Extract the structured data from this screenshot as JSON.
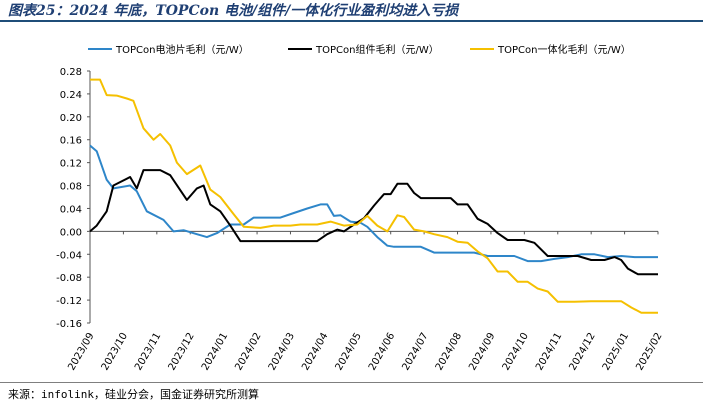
{
  "header": {
    "title": "图表25：2024 年底，TOPCon 电池/组件/一体化行业盈利均进入亏损"
  },
  "footer": {
    "source": "来源：infolink，硅业分会，国金证券研究所测算"
  },
  "chart_data": {
    "type": "line",
    "title": "",
    "xlabel": "",
    "ylabel": "",
    "ylim": [
      -0.16,
      0.28
    ],
    "yticks": [
      "0.28",
      "0.24",
      "0.20",
      "0.16",
      "0.12",
      "0.08",
      "0.04",
      "0.00",
      "-0.04",
      "-0.08",
      "-0.12",
      "-0.16"
    ],
    "xlim": [
      "2023/09",
      "2025/02"
    ],
    "xticks": [
      "2023/09",
      "2023/10",
      "2023/11",
      "2023/12",
      "2024/01",
      "2024/02",
      "2024/03",
      "2024/04",
      "2024/05",
      "2024/06",
      "2024/07",
      "2024/08",
      "2024/09",
      "2024/10",
      "2024/11",
      "2024/12",
      "2025/01",
      "2025/02"
    ],
    "grid": false,
    "legend_position": "top",
    "series": [
      {
        "name": "TOPCon电池片毛利（元/W）",
        "color": "#2e86c9",
        "points": [
          [
            "2023/09",
            0.15
          ],
          [
            "2023/09.2",
            0.14
          ],
          [
            "2023/09.5",
            0.09
          ],
          [
            "2023/09.7",
            0.075
          ],
          [
            "2023/10.2",
            0.08
          ],
          [
            "2023/10.4",
            0.07
          ],
          [
            "2023/10.7",
            0.035
          ],
          [
            "2023/11.2",
            0.02
          ],
          [
            "2023/11.5",
            0.0
          ],
          [
            "2023/11.8",
            0.002
          ],
          [
            "2023/12.2",
            -0.005
          ],
          [
            "2023/12.5",
            -0.01
          ],
          [
            "2023/12.8",
            -0.003
          ],
          [
            "2024/01.2",
            0.012
          ],
          [
            "2024/01.6",
            0.012
          ],
          [
            "2024/01.9",
            0.024
          ],
          [
            "2024/02.3",
            0.024
          ],
          [
            "2024/02.7",
            0.024
          ],
          [
            "2024/03.1",
            0.032
          ],
          [
            "2024/03.5",
            0.04
          ],
          [
            "2024/03.9",
            0.047
          ],
          [
            "2024/04.1",
            0.047
          ],
          [
            "2024/04.3",
            0.027
          ],
          [
            "2024/04.5",
            0.028
          ],
          [
            "2024/04.8",
            0.017
          ],
          [
            "2024/05.1",
            0.015
          ],
          [
            "2024/05.3",
            0.008
          ],
          [
            "2024/05.6",
            -0.01
          ],
          [
            "2024/05.9",
            -0.025
          ],
          [
            "2024/06.1",
            -0.027
          ],
          [
            "2024/06.5",
            -0.027
          ],
          [
            "2024/06.9",
            -0.027
          ],
          [
            "2024/07.3",
            -0.037
          ],
          [
            "2024/07.7",
            -0.037
          ],
          [
            "2024/08.1",
            -0.037
          ],
          [
            "2024/08.5",
            -0.037
          ],
          [
            "2024/08.9",
            -0.043
          ],
          [
            "2024/09.3",
            -0.043
          ],
          [
            "2024/09.7",
            -0.043
          ],
          [
            "2024/10.1",
            -0.052
          ],
          [
            "2024/10.5",
            -0.052
          ],
          [
            "2024/10.9",
            -0.048
          ],
          [
            "2024/11.3",
            -0.045
          ],
          [
            "2024/11.7",
            -0.04
          ],
          [
            "2024/12.1",
            -0.04
          ],
          [
            "2024/12.5",
            -0.045
          ],
          [
            "2024/12.9",
            -0.043
          ],
          [
            "2025/01.3",
            -0.045
          ],
          [
            "2025/01.7",
            -0.045
          ],
          [
            "2025/02",
            -0.045
          ]
        ]
      },
      {
        "name": "TOPCon组件毛利（元/W）",
        "color": "#000000",
        "points": [
          [
            "2023/09",
            0.0
          ],
          [
            "2023/09.2",
            0.01
          ],
          [
            "2023/09.5",
            0.035
          ],
          [
            "2023/09.7",
            0.08
          ],
          [
            "2023/10.2",
            0.095
          ],
          [
            "2023/10.4",
            0.075
          ],
          [
            "2023/10.6",
            0.107
          ],
          [
            "2023/11.1",
            0.107
          ],
          [
            "2023/11.4",
            0.098
          ],
          [
            "2023/11.7",
            0.072
          ],
          [
            "2023/11.9",
            0.055
          ],
          [
            "2023/12.2",
            0.075
          ],
          [
            "2023/12.4",
            0.08
          ],
          [
            "2023/12.6",
            0.047
          ],
          [
            "2023/12.9",
            0.035
          ],
          [
            "2024/01.2",
            0.01
          ],
          [
            "2024/01.5",
            -0.017
          ],
          [
            "2024/02.2",
            -0.017
          ],
          [
            "2024/02.7",
            -0.017
          ],
          [
            "2024/03.2",
            -0.017
          ],
          [
            "2024/03.8",
            -0.017
          ],
          [
            "2024/04.1",
            -0.005
          ],
          [
            "2024/04.4",
            0.003
          ],
          [
            "2024/04.6",
            0.0
          ],
          [
            "2024/04.9",
            0.012
          ],
          [
            "2024/05.2",
            0.023
          ],
          [
            "2024/05.5",
            0.045
          ],
          [
            "2024/05.8",
            0.065
          ],
          [
            "2024/06.0",
            0.065
          ],
          [
            "2024/06.2",
            0.083
          ],
          [
            "2024/06.5",
            0.083
          ],
          [
            "2024/06.7",
            0.067
          ],
          [
            "2024/06.9",
            0.058
          ],
          [
            "2024/07.3",
            0.058
          ],
          [
            "2024/07.8",
            0.058
          ],
          [
            "2024/08.0",
            0.047
          ],
          [
            "2024/08.3",
            0.047
          ],
          [
            "2024/08.6",
            0.022
          ],
          [
            "2024/08.9",
            0.013
          ],
          [
            "2024/09.2",
            -0.003
          ],
          [
            "2024/09.5",
            -0.015
          ],
          [
            "2024/10.0",
            -0.015
          ],
          [
            "2024/10.3",
            -0.02
          ],
          [
            "2024/10.7",
            -0.043
          ],
          [
            "2024/11.2",
            -0.043
          ],
          [
            "2024/11.6",
            -0.043
          ],
          [
            "2024/12.0",
            -0.05
          ],
          [
            "2024/12.4",
            -0.05
          ],
          [
            "2024/12.7",
            -0.045
          ],
          [
            "2024/12.9",
            -0.05
          ],
          [
            "2025/01.1",
            -0.065
          ],
          [
            "2025/01.4",
            -0.075
          ],
          [
            "2025/01.8",
            -0.075
          ],
          [
            "2025/02",
            -0.075
          ]
        ]
      },
      {
        "name": "TOPCon一体化毛利（元/W）",
        "color": "#f5c000",
        "points": [
          [
            "2023/09",
            0.265
          ],
          [
            "2023/09.3",
            0.265
          ],
          [
            "2023/09.5",
            0.238
          ],
          [
            "2023/09.8",
            0.237
          ],
          [
            "2023/10.1",
            0.232
          ],
          [
            "2023/10.3",
            0.228
          ],
          [
            "2023/10.6",
            0.18
          ],
          [
            "2023/10.9",
            0.16
          ],
          [
            "2023/11.1",
            0.17
          ],
          [
            "2023/11.4",
            0.15
          ],
          [
            "2023/11.6",
            0.12
          ],
          [
            "2023/11.9",
            0.1
          ],
          [
            "2023/12.3",
            0.115
          ],
          [
            "2023/12.6",
            0.073
          ],
          [
            "2023/12.9",
            0.06
          ],
          [
            "2024/01.3",
            0.03
          ],
          [
            "2024/01.6",
            0.008
          ],
          [
            "2024/02.1",
            0.006
          ],
          [
            "2024/02.5",
            0.01
          ],
          [
            "2024/03.0",
            0.01
          ],
          [
            "2024/03.3",
            0.012
          ],
          [
            "2024/03.8",
            0.012
          ],
          [
            "2024/04.2",
            0.017
          ],
          [
            "2024/04.6",
            0.01
          ],
          [
            "2024/05.0",
            0.012
          ],
          [
            "2024/05.3",
            0.027
          ],
          [
            "2024/05.6",
            0.01
          ],
          [
            "2024/05.9",
            0.0
          ],
          [
            "2024/06.2",
            0.028
          ],
          [
            "2024/06.4",
            0.025
          ],
          [
            "2024/06.7",
            0.003
          ],
          [
            "2024/07.0",
            0.0
          ],
          [
            "2024/07.3",
            -0.005
          ],
          [
            "2024/07.7",
            -0.01
          ],
          [
            "2024/08.0",
            -0.018
          ],
          [
            "2024/08.3",
            -0.02
          ],
          [
            "2024/08.6",
            -0.035
          ],
          [
            "2024/08.9",
            -0.047
          ],
          [
            "2024/09.2",
            -0.07
          ],
          [
            "2024/09.5",
            -0.07
          ],
          [
            "2024/09.8",
            -0.088
          ],
          [
            "2024/10.1",
            -0.088
          ],
          [
            "2024/10.4",
            -0.1
          ],
          [
            "2024/10.7",
            -0.105
          ],
          [
            "2024/11.0",
            -0.123
          ],
          [
            "2024/11.5",
            -0.123
          ],
          [
            "2024/12.0",
            -0.122
          ],
          [
            "2024/12.5",
            -0.122
          ],
          [
            "2024/12.9",
            -0.122
          ],
          [
            "2025/01.2",
            -0.133
          ],
          [
            "2025/01.5",
            -0.142
          ],
          [
            "2025/02",
            -0.142
          ]
        ]
      }
    ]
  }
}
